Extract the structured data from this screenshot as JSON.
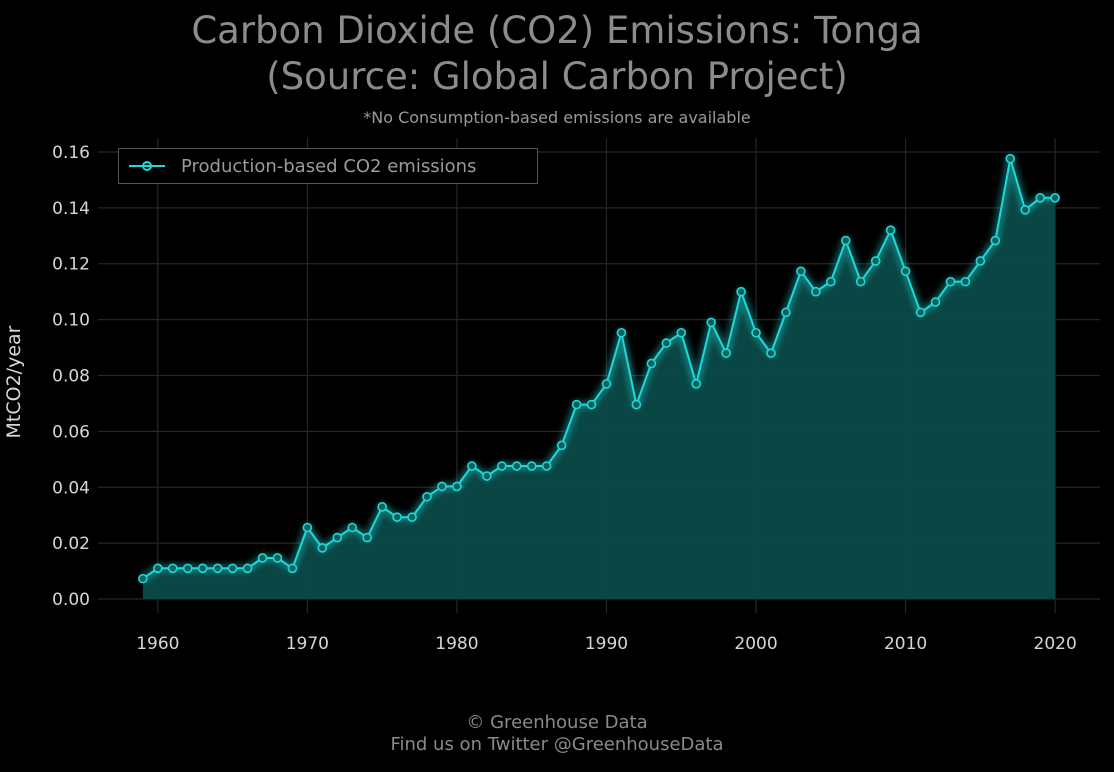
{
  "title_line1": "Carbon Dioxide (CO2) Emissions: Tonga",
  "title_line2": "(Source: Global Carbon Project)",
  "subtitle": "*No Consumption-based emissions are available",
  "footer_line1": "© Greenhouse Data",
  "footer_line2": "Find us on Twitter @GreenhouseData",
  "colors": {
    "line": "#1fd8d8",
    "fill": "#0a4a48",
    "grid": "#262626",
    "background": "#000000"
  },
  "chart_data": {
    "type": "area",
    "title": "Carbon Dioxide (CO2) Emissions: Tonga (Source: Global Carbon Project)",
    "ylabel": "MtCO2/year",
    "xlabel": "",
    "xlim": [
      1956,
      2023
    ],
    "ylim": [
      -0.005,
      0.165
    ],
    "xticks": [
      1960,
      1970,
      1980,
      1990,
      2000,
      2010,
      2020
    ],
    "yticks": [
      0.0,
      0.02,
      0.04,
      0.06,
      0.08,
      0.1,
      0.12,
      0.14,
      0.16
    ],
    "ytick_labels": [
      "0.00",
      "0.02",
      "0.04",
      "0.06",
      "0.08",
      "0.10",
      "0.12",
      "0.14",
      "0.16"
    ],
    "grid": true,
    "legend_position": "top-left",
    "series": [
      {
        "name": "Production-based CO2 emissions",
        "x": [
          1959,
          1960,
          1961,
          1962,
          1963,
          1964,
          1965,
          1966,
          1967,
          1968,
          1969,
          1970,
          1971,
          1972,
          1973,
          1974,
          1975,
          1976,
          1977,
          1978,
          1979,
          1980,
          1981,
          1982,
          1983,
          1984,
          1985,
          1986,
          1987,
          1988,
          1989,
          1990,
          1991,
          1992,
          1993,
          1994,
          1995,
          1996,
          1997,
          1998,
          1999,
          2000,
          2001,
          2002,
          2003,
          2004,
          2005,
          2006,
          2007,
          2008,
          2009,
          2010,
          2011,
          2012,
          2013,
          2014,
          2015,
          2016,
          2017,
          2018,
          2019,
          2020
        ],
        "y": [
          0.0073,
          0.011,
          0.011,
          0.011,
          0.011,
          0.011,
          0.011,
          0.011,
          0.0147,
          0.0147,
          0.011,
          0.0256,
          0.0183,
          0.022,
          0.0256,
          0.022,
          0.033,
          0.0293,
          0.0293,
          0.0366,
          0.0403,
          0.0403,
          0.0476,
          0.044,
          0.0476,
          0.0476,
          0.0476,
          0.0476,
          0.055,
          0.0696,
          0.0696,
          0.077,
          0.0953,
          0.0696,
          0.0843,
          0.0916,
          0.0953,
          0.077,
          0.099,
          0.088,
          0.11,
          0.0953,
          0.088,
          0.1026,
          0.1173,
          0.11,
          0.1136,
          0.1283,
          0.1136,
          0.121,
          0.132,
          0.1173,
          0.1026,
          0.1063,
          0.1136,
          0.1136,
          0.121,
          0.1283,
          0.1576,
          0.1393,
          0.1436,
          0.1436
        ]
      }
    ]
  }
}
